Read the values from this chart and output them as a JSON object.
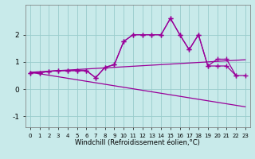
{
  "title": "",
  "xlabel": "Windchill (Refroidissement éolien,°C)",
  "background_color": "#c8eaea",
  "grid_color": "#99cccc",
  "line_color": "#990099",
  "x_data": [
    0,
    1,
    2,
    3,
    4,
    5,
    6,
    7,
    8,
    9,
    10,
    11,
    12,
    13,
    14,
    15,
    16,
    17,
    18,
    19,
    20,
    21,
    22,
    23
  ],
  "series1": [
    0.6,
    0.6,
    0.65,
    0.68,
    0.68,
    0.68,
    0.68,
    0.42,
    0.8,
    0.9,
    1.75,
    2.0,
    2.0,
    2.0,
    2.0,
    2.6,
    2.0,
    1.45,
    2.0,
    0.85,
    0.85,
    0.85,
    0.5,
    null
  ],
  "series2": [
    0.6,
    0.6,
    0.65,
    0.68,
    0.68,
    0.68,
    0.68,
    0.42,
    0.8,
    0.9,
    1.75,
    2.0,
    2.0,
    2.0,
    2.0,
    2.6,
    2.0,
    1.45,
    2.0,
    0.85,
    1.1,
    1.1,
    0.5,
    0.5
  ],
  "trend1_x": [
    0,
    23
  ],
  "trend1_y": [
    0.62,
    1.08
  ],
  "trend2_x": [
    0,
    23
  ],
  "trend2_y": [
    0.62,
    -0.65
  ],
  "ylim": [
    -1.4,
    3.1
  ],
  "xlim": [
    -0.5,
    23.5
  ],
  "yticks": [
    -1,
    0,
    1,
    2
  ],
  "xticks": [
    0,
    1,
    2,
    3,
    4,
    5,
    6,
    7,
    8,
    9,
    10,
    11,
    12,
    13,
    14,
    15,
    16,
    17,
    18,
    19,
    20,
    21,
    22,
    23
  ]
}
